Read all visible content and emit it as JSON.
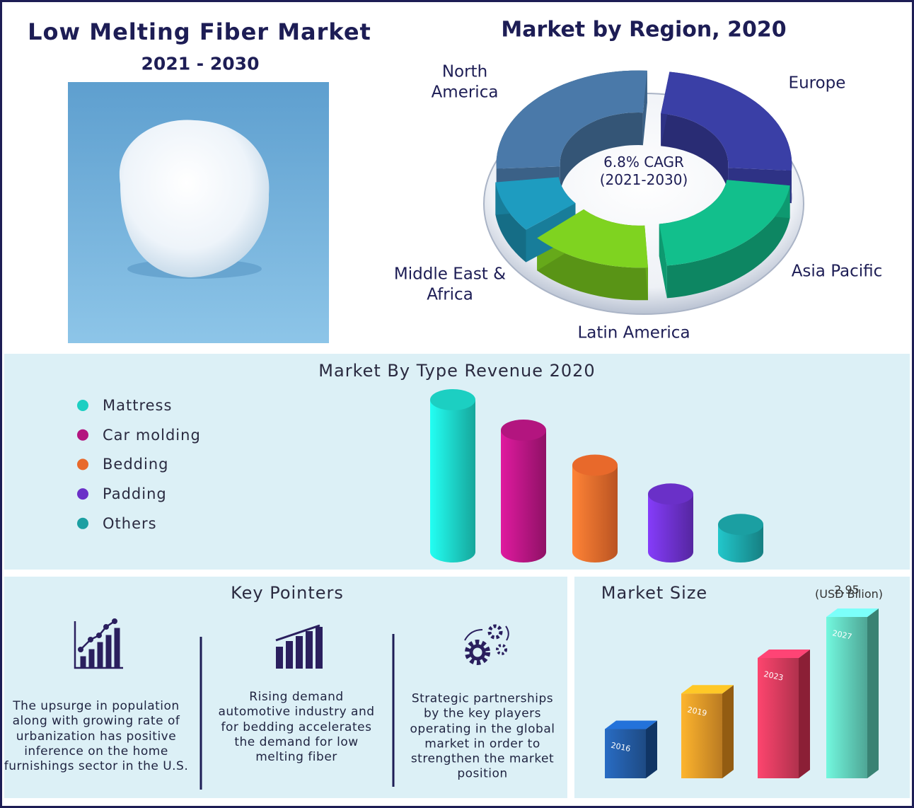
{
  "header": {
    "title": "Low Melting Fiber Market",
    "subtitle": "2021 - 2030"
  },
  "chart_data": [
    {
      "type": "donut",
      "title": "Market by Region, 2020",
      "annotation": "6.8% CAGR (2021-2030)",
      "categories": [
        "North America",
        "Europe",
        "Asia Pacific",
        "Latin America",
        "Middle East & Africa"
      ],
      "values": [
        28,
        25,
        22,
        15,
        10
      ],
      "colors": [
        "#4a79a9",
        "#3a3fa6",
        "#12bf8c",
        "#7fd320",
        "#1e9cc0"
      ]
    },
    {
      "type": "bar",
      "shape": "cylinder",
      "title": "Market By Type Revenue 2020",
      "categories": [
        "Mattress",
        "Car molding",
        "Bedding",
        "Padding",
        "Others"
      ],
      "values": [
        100,
        80,
        57,
        38,
        18
      ],
      "colors": [
        "#1ccfc2",
        "#b3157f",
        "#e8692b",
        "#6a30c8",
        "#1b9fa2"
      ]
    },
    {
      "type": "bar",
      "shape": "box",
      "title": "Market Size",
      "unit": "(USD Bilion)",
      "categories": [
        "2016",
        "2019",
        "2023",
        "2027"
      ],
      "values": [
        0.9,
        1.55,
        2.2,
        2.95
      ],
      "value_labels": [
        null,
        null,
        null,
        "2.95"
      ],
      "colors": [
        "#1b58a8",
        "#f59a1e",
        "#e8345a",
        "#5fd8c0"
      ]
    }
  ],
  "key_pointers": {
    "title": "Key Pointers",
    "items": [
      "The upsurge in population along with growing rate of urbanization has positive inference on the home furnishings sector in the U.S.",
      "Rising demand automotive industry and for bedding accelerates the demand for low melting fiber",
      "Strategic partnerships by the key players operating in the global market in order to strengthen the market position"
    ]
  }
}
